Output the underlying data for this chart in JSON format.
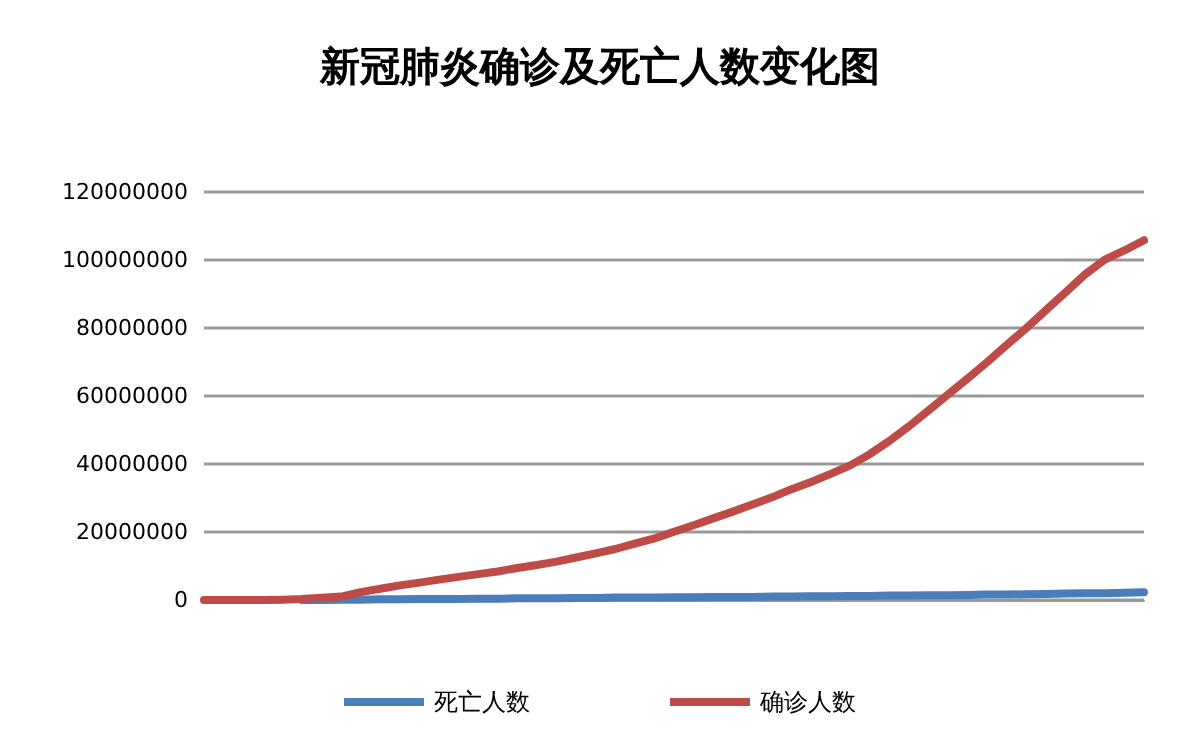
{
  "chart_data": {
    "type": "line",
    "title": "新冠肺炎确诊及死亡人数变化图",
    "categories": [
      null,
      null,
      null,
      null,
      null,
      null,
      null,
      null,
      null,
      null,
      null,
      null,
      null,
      null,
      null,
      null,
      null,
      null,
      null,
      null,
      null,
      null,
      null,
      null,
      null,
      null,
      null,
      null,
      null,
      null,
      null,
      null,
      null,
      null,
      null,
      null,
      null,
      null,
      null,
      null,
      null,
      null,
      null,
      null,
      null,
      null,
      null,
      null,
      null
    ],
    "series": [
      {
        "name": "死亡人数",
        "color": "#4a7ebb",
        "values": [
          null,
          null,
          null,
          null,
          null,
          0,
          0,
          100000,
          100000,
          200000,
          200000,
          300000,
          300000,
          300000,
          400000,
          400000,
          500000,
          500000,
          500000,
          600000,
          600000,
          700000,
          700000,
          700000,
          800000,
          800000,
          900000,
          900000,
          900000,
          1000000,
          1000000,
          1100000,
          1100000,
          1200000,
          1200000,
          1300000,
          1300000,
          1400000,
          1400000,
          1500000,
          1600000,
          1600000,
          1700000,
          1800000,
          1900000,
          2000000,
          2000000,
          2100000,
          2300000
        ]
      },
      {
        "name": "确诊人数",
        "color": "#be4b48",
        "values": [
          0,
          0,
          0,
          0,
          100000,
          300000,
          700000,
          1000000,
          2300000,
          3300000,
          4300000,
          5100000,
          6000000,
          6800000,
          7600000,
          8400000,
          9400000,
          10300000,
          11300000,
          12500000,
          13700000,
          15000000,
          16600000,
          18100000,
          20100000,
          22000000,
          24000000,
          26000000,
          28100000,
          30200000,
          32600000,
          34700000,
          37100000,
          39600000,
          42900000,
          46800000,
          51100000,
          55800000,
          60500000,
          65200000,
          70000000,
          75100000,
          80000000,
          85300000,
          90500000,
          95800000,
          100100000,
          102800000,
          105800000
        ]
      }
    ],
    "ylim": [
      0,
      120000000
    ],
    "yticks": [
      0,
      20000000,
      40000000,
      60000000,
      80000000,
      100000000,
      120000000
    ],
    "grid": "y",
    "legend": "bottom",
    "marker": "none",
    "line_style": "solid"
  }
}
